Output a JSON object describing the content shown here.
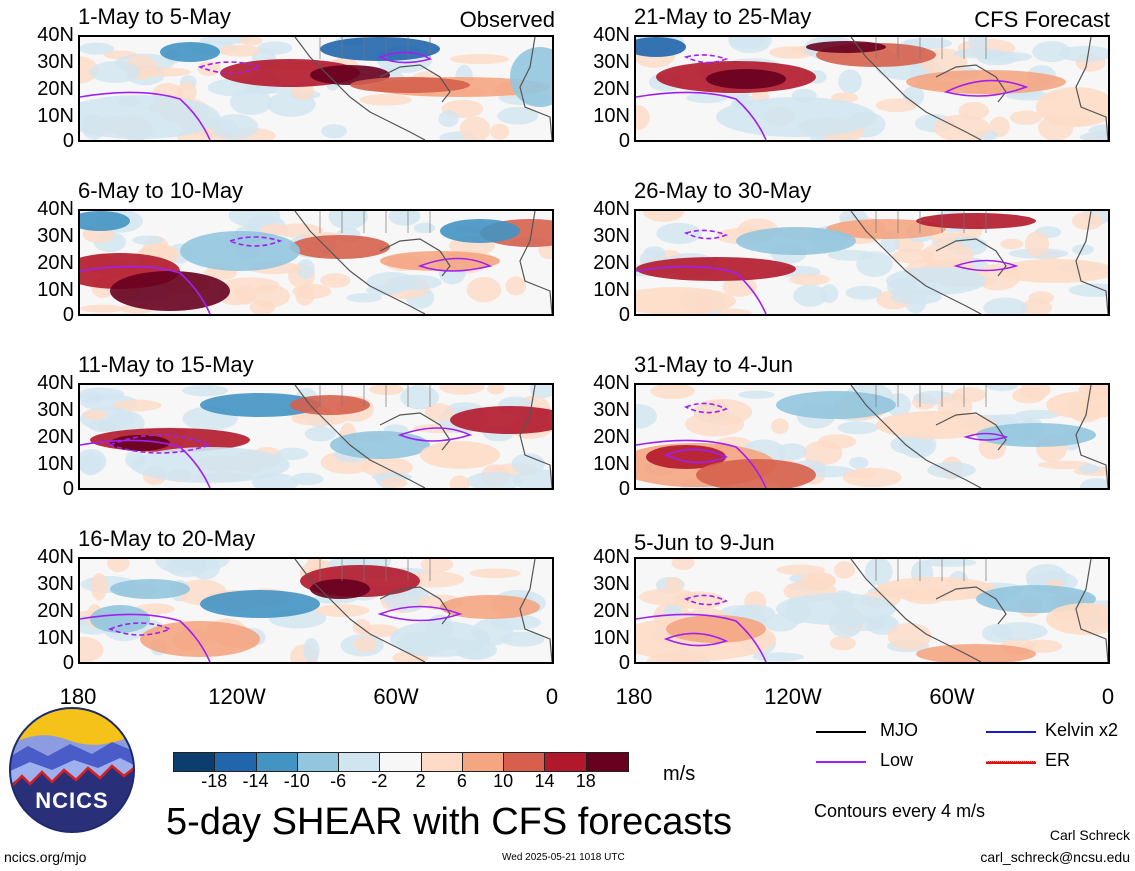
{
  "panels_left": [
    {
      "title": "1-May to 5-May",
      "tag": "Observed"
    },
    {
      "title": "6-May to 10-May",
      "tag": ""
    },
    {
      "title": "11-May to 15-May",
      "tag": ""
    },
    {
      "title": "16-May to 20-May",
      "tag": ""
    }
  ],
  "panels_right": [
    {
      "title": "21-May to 25-May",
      "tag": "CFS Forecast"
    },
    {
      "title": "26-May to 30-May",
      "tag": ""
    },
    {
      "title": "31-May to 4-Jun",
      "tag": ""
    },
    {
      "title": "5-Jun to 9-Jun",
      "tag": ""
    }
  ],
  "lat_labels": [
    "40N",
    "30N",
    "20N",
    "10N",
    "0"
  ],
  "lon_labels": [
    "180",
    "120W",
    "60W",
    "0"
  ],
  "colorbar": {
    "labels": [
      "-18",
      "-14",
      "-10",
      "-6",
      "-2",
      "2",
      "6",
      "10",
      "14",
      "18"
    ],
    "colors": [
      "#0b3d6e",
      "#2166ac",
      "#4393c3",
      "#92c5de",
      "#d1e5f0",
      "#f7f7f7",
      "#fddbc7",
      "#f4a582",
      "#d6604d",
      "#b2182b",
      "#67001f"
    ],
    "units": "m/s"
  },
  "legend": {
    "items": [
      {
        "label": "MJO",
        "color": "#000000"
      },
      {
        "label": "Kelvin x2",
        "color": "#1a1acc"
      },
      {
        "label": "Low",
        "color": "#a020f0"
      },
      {
        "label": "ER",
        "color": "#dd1111"
      }
    ],
    "contour_note": "Contours every 4 m/s"
  },
  "footer": {
    "main_title": "5-day SHEAR with CFS forecasts",
    "logo_text": "NCICS",
    "site": "ncics.org/mjo",
    "timestamp": "Wed 2025-05-21 1018 UTC",
    "author": "Carl Schreck",
    "email": "carl_schreck@ncsu.edu"
  }
}
